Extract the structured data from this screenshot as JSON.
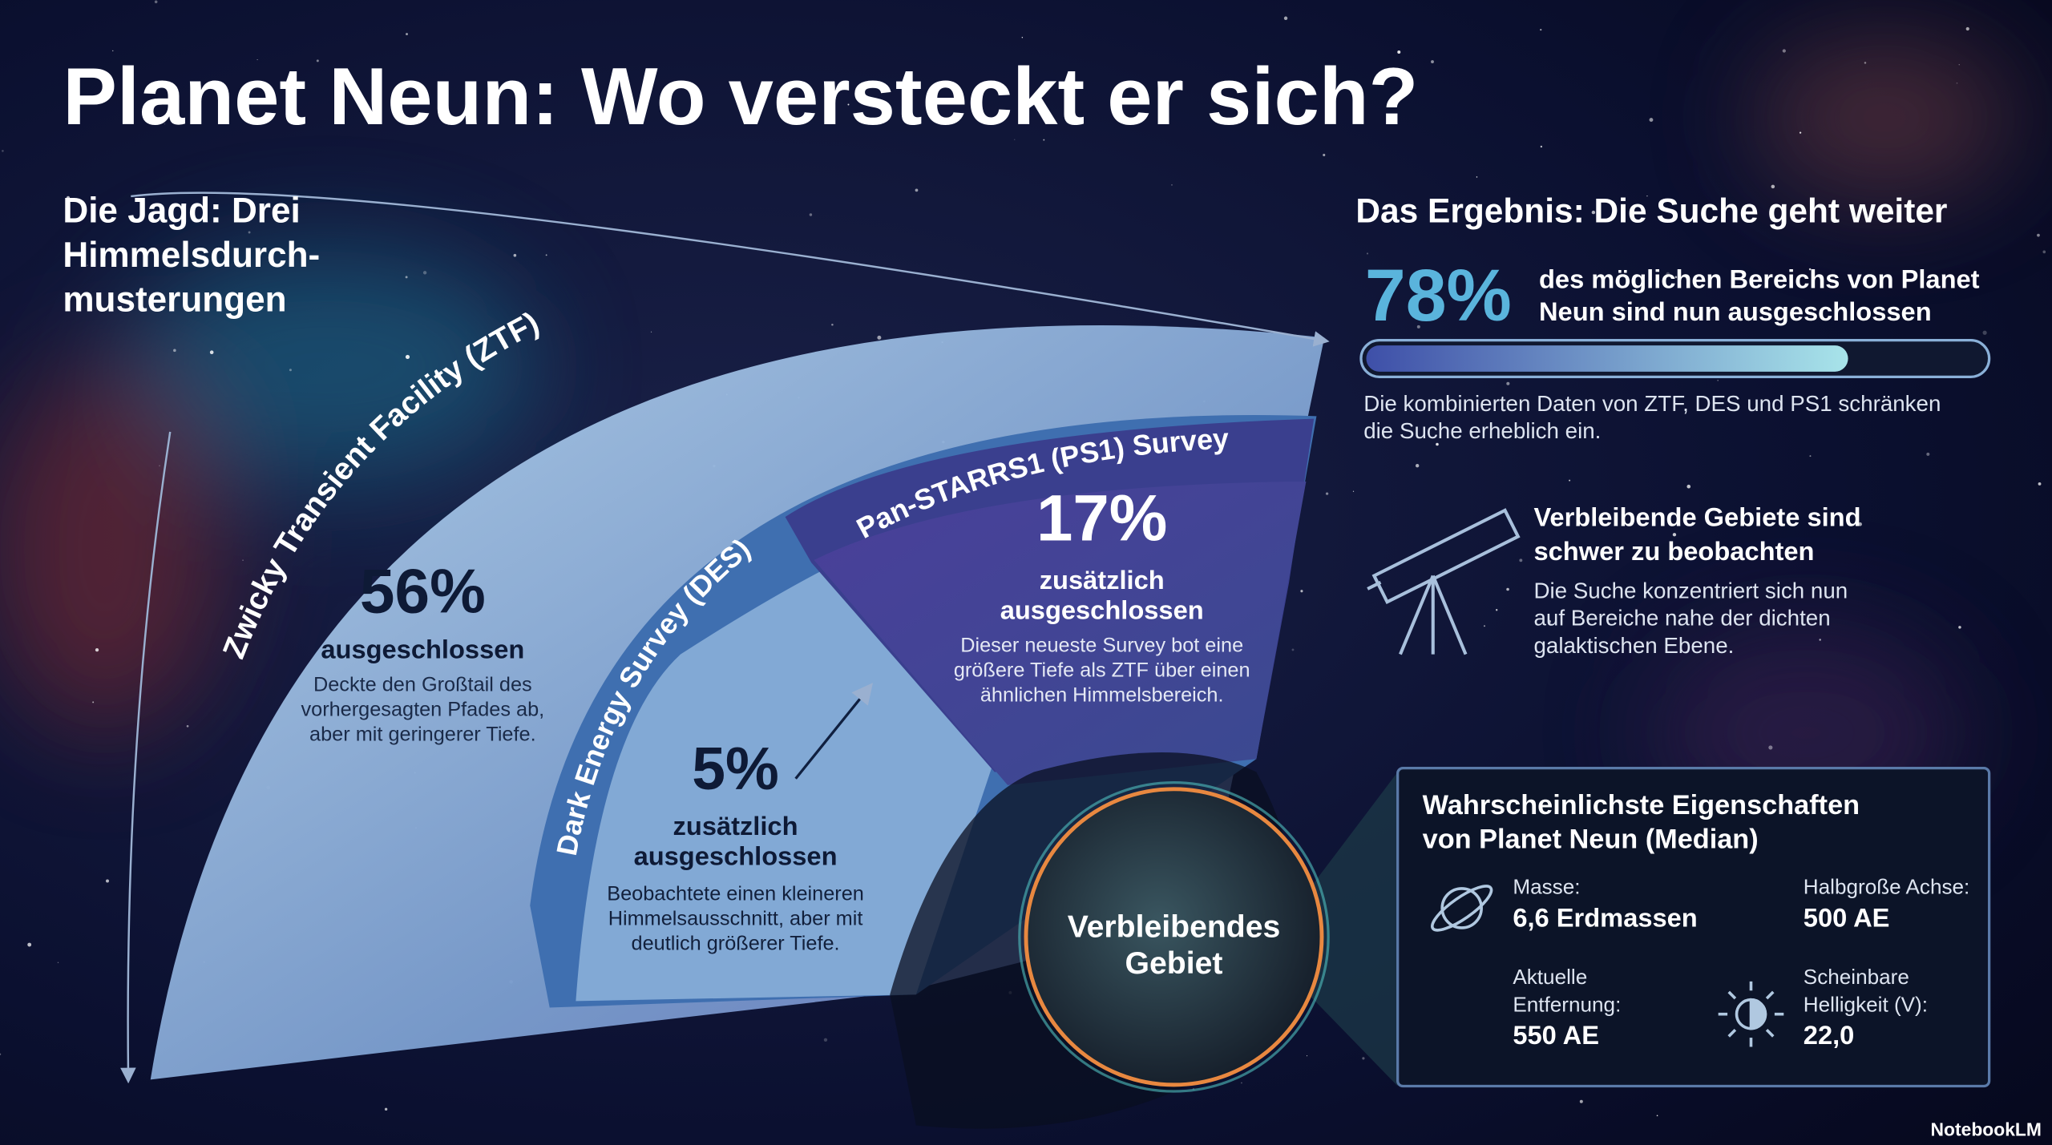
{
  "title": "Planet Neun: Wo versteckt er sich?",
  "hunt": {
    "heading_lines": [
      "Die Jagd: Drei",
      "Himmelsdurch-",
      "musterungen"
    ],
    "surveys": [
      {
        "name": "Zwicky Transient Facility (ZTF)",
        "share": "56%",
        "status_lines": [
          "ausgeschlossen"
        ],
        "description_lines": [
          "Deckte den Großtail des",
          "vorhergesagten Pfades ab,",
          "aber mit geringerer Tiefe."
        ]
      },
      {
        "name": "Dark Energy Survey (DES)",
        "share": "5%",
        "status_lines": [
          "zusätzlich",
          "ausgeschlossen"
        ],
        "description_lines": [
          "Beobachtete einen kleineren",
          "Himmelsausschnitt, aber mit",
          "deutlich größerer Tiefe."
        ]
      },
      {
        "name": "Pan-STARRS1 (PS1) Survey",
        "share": "17%",
        "status_lines": [
          "zusätzlich",
          "ausgeschlossen"
        ],
        "description_lines": [
          "Dieser neueste Survey bot eine",
          "größere Tiefe als ZTF über einen",
          "ähnlichen Himmelsbereich."
        ]
      }
    ],
    "remaining_lines": [
      "Verbleibendes",
      "Gebiet"
    ]
  },
  "result": {
    "heading": "Das Ergebnis: Die Suche geht weiter",
    "excluded": {
      "value": 78,
      "label": "78%"
    },
    "excluded_text_lines": [
      "des möglichen Bereichs von Planet",
      "Neun sind nun ausgeschlossen"
    ],
    "summary_lines": [
      "Die kombinierten Daten von ZTF, DES und PS1 schränken",
      "die Suche erheblich ein."
    ],
    "difficulty": {
      "heading_lines": [
        "Verbleibende Gebiete sind",
        "schwer zu beobachten"
      ],
      "body_lines": [
        "Die Suche konzentriert sich nun",
        "auf Bereiche nahe der dichten",
        "galaktischen Ebene."
      ]
    }
  },
  "properties": {
    "heading_lines": [
      "Wahrscheinlichste Eigenschaften",
      "von Planet Neun (Median)"
    ],
    "items": [
      {
        "label_lines": [
          "Masse:"
        ],
        "value": "6,6 Erdmassen"
      },
      {
        "label_lines": [
          "Halbgroße Achse:"
        ],
        "value": "500 AE"
      },
      {
        "label_lines": [
          "Aktuelle",
          "Entfernung:"
        ],
        "value": "550 AE"
      },
      {
        "label_lines": [
          "Scheinbare",
          "Helligkeit (V):"
        ],
        "value": "22,0"
      }
    ]
  },
  "brand": "NotebookLM"
}
